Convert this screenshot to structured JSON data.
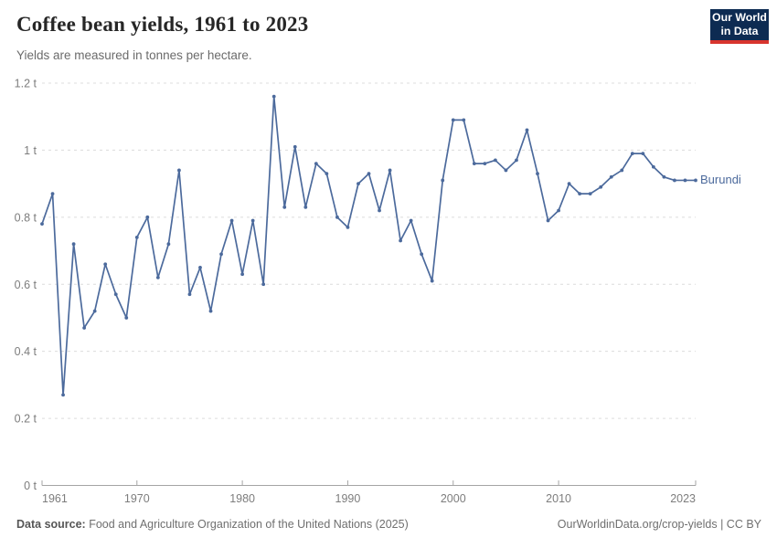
{
  "header": {
    "title": "Coffee bean yields, 1961 to 2023",
    "subtitle": "Yields are measured in tonnes per hectare.",
    "logo": {
      "line1": "Our World",
      "line2": "in Data",
      "bg_color": "#0d2b52",
      "stripe_color": "#d8352e"
    }
  },
  "chart_data": {
    "type": "line",
    "title": "Coffee bean yields, 1961 to 2023",
    "unit": "tonnes per hectare",
    "xlim": [
      1961,
      2023
    ],
    "ylim": [
      0,
      1.2
    ],
    "grid": "horizontal-dashed",
    "legend": "end-of-line-label",
    "accent_color": "#4c6a9c",
    "yticks": [
      {
        "value": 0,
        "label": "0 t"
      },
      {
        "value": 0.2,
        "label": "0.2 t"
      },
      {
        "value": 0.4,
        "label": "0.4 t"
      },
      {
        "value": 0.6,
        "label": "0.6 t"
      },
      {
        "value": 0.8,
        "label": "0.8 t"
      },
      {
        "value": 1,
        "label": "1 t"
      },
      {
        "value": 1.2,
        "label": "1.2 t"
      }
    ],
    "xticks": [
      1961,
      1970,
      1980,
      1990,
      2000,
      2010,
      2023
    ],
    "series": [
      {
        "name": "Burundi",
        "color": "#4c6a9c",
        "x": [
          1961,
          1962,
          1963,
          1964,
          1965,
          1966,
          1967,
          1968,
          1969,
          1970,
          1971,
          1972,
          1973,
          1974,
          1975,
          1976,
          1977,
          1978,
          1979,
          1980,
          1981,
          1982,
          1983,
          1984,
          1985,
          1986,
          1987,
          1988,
          1989,
          1990,
          1991,
          1992,
          1993,
          1994,
          1995,
          1996,
          1997,
          1998,
          1999,
          2000,
          2001,
          2002,
          2003,
          2004,
          2005,
          2006,
          2007,
          2008,
          2009,
          2010,
          2011,
          2012,
          2013,
          2014,
          2015,
          2016,
          2017,
          2018,
          2019,
          2020,
          2021,
          2022,
          2023
        ],
        "values": [
          0.78,
          0.87,
          0.27,
          0.72,
          0.47,
          0.52,
          0.66,
          0.57,
          0.5,
          0.74,
          0.8,
          0.62,
          0.72,
          0.94,
          0.57,
          0.65,
          0.52,
          0.69,
          0.79,
          0.63,
          0.79,
          0.6,
          1.16,
          0.83,
          1.01,
          0.83,
          0.96,
          0.93,
          0.8,
          0.77,
          0.9,
          0.93,
          0.82,
          0.94,
          0.73,
          0.79,
          0.69,
          0.61,
          0.91,
          1.09,
          1.09,
          0.96,
          0.96,
          0.97,
          0.94,
          0.97,
          1.06,
          0.93,
          0.79,
          0.82,
          0.9,
          0.87,
          0.87,
          0.89,
          0.92,
          0.94,
          0.99,
          0.99,
          0.95,
          0.92,
          0.91,
          0.91,
          0.91
        ]
      }
    ]
  },
  "footer": {
    "source_label": "Data source:",
    "source_text": "Food and Agriculture Organization of the United Nations (2025)",
    "right_text": "OurWorldinData.org/crop-yields | CC BY"
  }
}
